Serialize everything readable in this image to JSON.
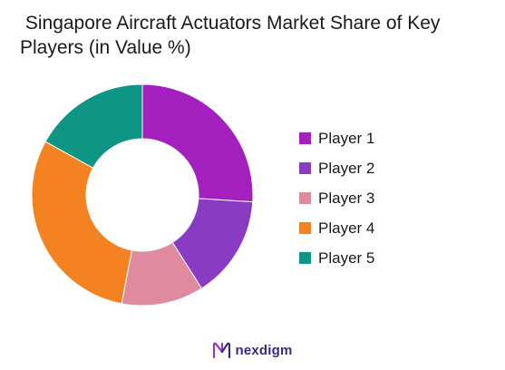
{
  "chart_data": {
    "type": "pie",
    "title": " Singapore Aircraft Actuators Market Share of Key Players (in Value %)",
    "categories": [
      "Player 1",
      "Player 2",
      "Player 3",
      "Player 4",
      "Player 5"
    ],
    "values": [
      26,
      15,
      12,
      30,
      17
    ],
    "colors": [
      "#a320bf",
      "#8a3bc4",
      "#e08aa0",
      "#f58220",
      "#0e9584"
    ],
    "legend_position": "right"
  },
  "brand": {
    "name": "nexdigm",
    "logo": "nexdigm-logo",
    "color": "#3a2a86"
  }
}
